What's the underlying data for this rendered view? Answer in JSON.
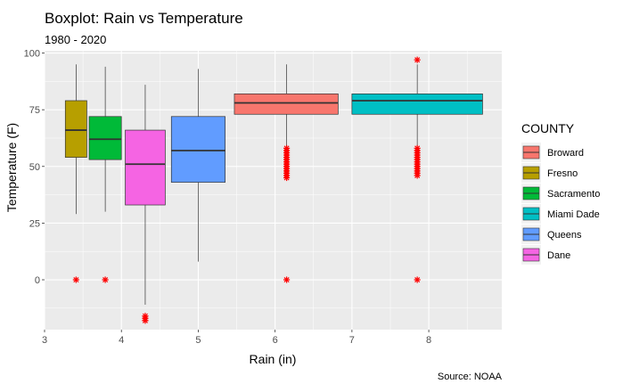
{
  "chart_data": {
    "type": "boxplot",
    "title": "Boxplot: Rain vs Temperature",
    "subtitle": "1980 - 2020",
    "xlabel": "Rain (in)",
    "ylabel": "Temperature (F)",
    "caption": "Source: NOAA",
    "xlim": [
      3,
      8.95
    ],
    "ylim": [
      -22,
      101
    ],
    "x_ticks": [
      3,
      4,
      5,
      6,
      7,
      8
    ],
    "y_ticks": [
      0,
      25,
      50,
      75,
      100
    ],
    "grid": true,
    "legend": {
      "title": "COUNTY",
      "position": "right"
    },
    "series": [
      {
        "name": "Broward",
        "color": "#F8766D",
        "x_min": 5.47,
        "x_max": 6.82,
        "whisker_x": 6.15,
        "q1": 73,
        "median": 78,
        "q3": 82,
        "whisker_low": 59,
        "whisker_high": 95,
        "outliers": [
          58,
          57,
          56,
          55,
          54,
          53,
          52,
          51,
          50,
          49,
          48,
          47,
          46,
          45,
          0
        ]
      },
      {
        "name": "Fresno",
        "color": "#B79F00",
        "x_min": 3.27,
        "x_max": 3.55,
        "whisker_x": 3.41,
        "q1": 54,
        "median": 66,
        "q3": 79,
        "whisker_low": 29,
        "whisker_high": 95,
        "outliers": [
          0
        ]
      },
      {
        "name": "Sacramento",
        "color": "#00BA38",
        "x_min": 3.58,
        "x_max": 4.0,
        "whisker_x": 3.79,
        "q1": 53,
        "median": 62,
        "q3": 72,
        "whisker_low": 30,
        "whisker_high": 94,
        "outliers": [
          0
        ]
      },
      {
        "name": "Miami Dade",
        "color": "#00BFC4",
        "x_min": 7.0,
        "x_max": 8.7,
        "whisker_x": 7.85,
        "q1": 73,
        "median": 79,
        "q3": 82,
        "whisker_low": 59,
        "whisker_high": 95,
        "outliers": [
          97,
          58,
          57,
          56,
          55,
          54,
          53,
          52,
          51,
          50,
          49,
          48,
          47,
          46,
          0
        ]
      },
      {
        "name": "Queens",
        "color": "#619CFF",
        "x_min": 4.65,
        "x_max": 5.35,
        "whisker_x": 5.0,
        "q1": 43,
        "median": 57,
        "q3": 72,
        "whisker_low": 8,
        "whisker_high": 93,
        "outliers": []
      },
      {
        "name": "Dane",
        "color": "#F564E3",
        "x_min": 4.05,
        "x_max": 4.57,
        "whisker_x": 4.31,
        "q1": 33,
        "median": 51,
        "q3": 66,
        "whisker_low": -11,
        "whisker_high": 86,
        "outliers": [
          -16,
          -17,
          -18
        ]
      }
    ],
    "outlier_color": "#FF0000"
  }
}
